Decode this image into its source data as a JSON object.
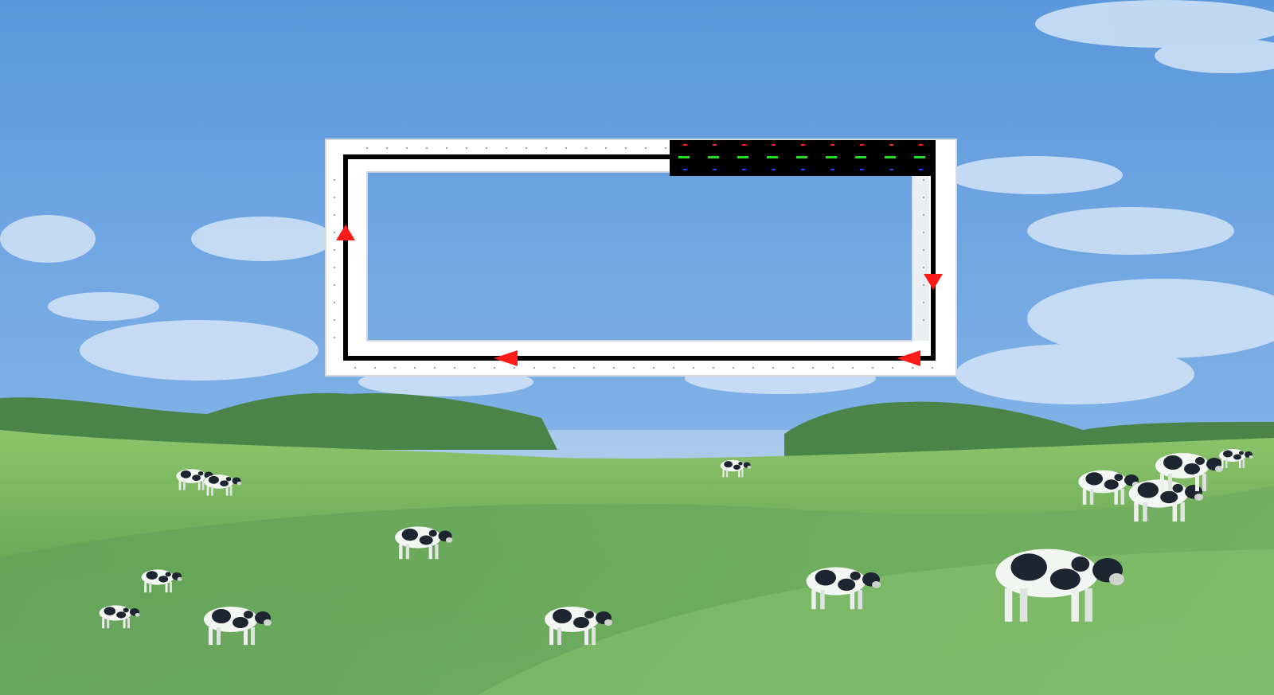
{
  "scene": {
    "description_colors": {
      "sky_top": "#5a97dc",
      "sky_bottom": "#a9c9ee",
      "grass_light": "#7cb85a",
      "grass_dark": "#4d8a45",
      "trees": "#3f7a3e",
      "frame_white": "#ffffff",
      "track_black": "#000000",
      "arrow_red": "#ff1a1a",
      "panel_black": "#000000",
      "led_red": "#ff2020",
      "led_green": "#20e020",
      "led_blue": "#2040ff"
    },
    "icons": [
      "cow-icon",
      "arrow-up-icon",
      "arrow-down-icon",
      "arrow-left-icon"
    ]
  }
}
